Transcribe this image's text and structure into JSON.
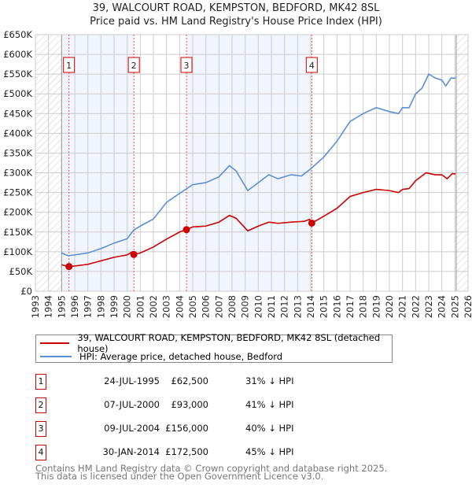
{
  "title_line1": "39, WALCOURT ROAD, KEMPSTON, BEDFORD, MK42 8SL",
  "title_line2": "Price paid vs. HM Land Registry's House Price Index (HPI)",
  "chart_data": {
    "type": "line",
    "title": "39, WALCOURT ROAD, KEMPSTON, BEDFORD, MK42 8SL — Price paid vs. HM Land Registry's House Price Index (HPI)",
    "xlim": [
      1993,
      2026
    ],
    "ylim": [
      0,
      650000
    ],
    "x_ticks": [
      "1993",
      "1994",
      "1995",
      "1996",
      "1997",
      "1998",
      "1999",
      "2000",
      "2001",
      "2002",
      "2003",
      "2004",
      "2005",
      "2006",
      "2007",
      "2008",
      "2009",
      "2010",
      "2011",
      "2012",
      "2013",
      "2014",
      "2015",
      "2016",
      "2017",
      "2018",
      "2019",
      "2020",
      "2021",
      "2022",
      "2023",
      "2024",
      "2025",
      "2026"
    ],
    "y_ticks": [
      {
        "v": 0,
        "label": "£0"
      },
      {
        "v": 50000,
        "label": "£50K"
      },
      {
        "v": 100000,
        "label": "£100K"
      },
      {
        "v": 150000,
        "label": "£150K"
      },
      {
        "v": 200000,
        "label": "£200K"
      },
      {
        "v": 250000,
        "label": "£250K"
      },
      {
        "v": 300000,
        "label": "£300K"
      },
      {
        "v": 350000,
        "label": "£350K"
      },
      {
        "v": 400000,
        "label": "£400K"
      },
      {
        "v": 450000,
        "label": "£450K"
      },
      {
        "v": 500000,
        "label": "£500K"
      },
      {
        "v": 550000,
        "label": "£550K"
      },
      {
        "v": 600000,
        "label": "£600K"
      },
      {
        "v": 650000,
        "label": "£650K"
      }
    ],
    "grid": true,
    "hatched_ranges": [
      [
        1993,
        1995
      ],
      [
        2025.1,
        2026
      ]
    ],
    "shaded_ranges": [
      [
        1995,
        2000.51
      ],
      [
        2004.52,
        2014.08
      ]
    ],
    "series": [
      {
        "name": "39, WALCOURT ROAD, KEMPSTON, BEDFORD, MK42 8SL (detached house)",
        "color": "#cc0000",
        "points": [
          [
            1995,
            67000
          ],
          [
            1995.56,
            62500
          ],
          [
            1996,
            64000
          ],
          [
            1997,
            68000
          ],
          [
            1998,
            77000
          ],
          [
            1999,
            86000
          ],
          [
            2000,
            92000
          ],
          [
            2000.4,
            100000
          ],
          [
            2000.51,
            93000
          ],
          [
            2001,
            97000
          ],
          [
            2002,
            112000
          ],
          [
            2003,
            132000
          ],
          [
            2004,
            150000
          ],
          [
            2004.52,
            156000
          ],
          [
            2005,
            163000
          ],
          [
            2006,
            165000
          ],
          [
            2007,
            175000
          ],
          [
            2007.8,
            192000
          ],
          [
            2008.3,
            185000
          ],
          [
            2009.2,
            153000
          ],
          [
            2010,
            165000
          ],
          [
            2010.8,
            175000
          ],
          [
            2011.5,
            172000
          ],
          [
            2012.5,
            175000
          ],
          [
            2013.5,
            177000
          ],
          [
            2013.9,
            182000
          ],
          [
            2014.08,
            172500
          ],
          [
            2015,
            190000
          ],
          [
            2016,
            210000
          ],
          [
            2017,
            240000
          ],
          [
            2018,
            250000
          ],
          [
            2019,
            258000
          ],
          [
            2020,
            255000
          ],
          [
            2020.7,
            250000
          ],
          [
            2021,
            258000
          ],
          [
            2021.5,
            260000
          ],
          [
            2022,
            280000
          ],
          [
            2022.8,
            300000
          ],
          [
            2023.5,
            295000
          ],
          [
            2024,
            295000
          ],
          [
            2024.4,
            285000
          ],
          [
            2024.8,
            298000
          ],
          [
            2025.05,
            297000
          ]
        ]
      },
      {
        "name": "HPI: Average price, detached house, Bedford",
        "color": "#5b8fd4",
        "points": [
          [
            1995,
            97000
          ],
          [
            1995.5,
            90000
          ],
          [
            1996,
            92000
          ],
          [
            1997,
            97000
          ],
          [
            1998,
            108000
          ],
          [
            1999,
            122000
          ],
          [
            2000,
            133000
          ],
          [
            2000.5,
            155000
          ],
          [
            2001,
            165000
          ],
          [
            2002,
            183000
          ],
          [
            2003,
            225000
          ],
          [
            2004,
            248000
          ],
          [
            2005,
            270000
          ],
          [
            2006,
            275000
          ],
          [
            2007,
            290000
          ],
          [
            2007.8,
            318000
          ],
          [
            2008.3,
            305000
          ],
          [
            2009.2,
            255000
          ],
          [
            2010,
            275000
          ],
          [
            2010.8,
            295000
          ],
          [
            2011.5,
            285000
          ],
          [
            2012.5,
            295000
          ],
          [
            2013.3,
            292000
          ],
          [
            2014,
            310000
          ],
          [
            2015,
            340000
          ],
          [
            2016,
            380000
          ],
          [
            2017,
            430000
          ],
          [
            2018,
            450000
          ],
          [
            2019,
            465000
          ],
          [
            2020,
            455000
          ],
          [
            2020.7,
            450000
          ],
          [
            2021,
            465000
          ],
          [
            2021.5,
            465000
          ],
          [
            2022,
            500000
          ],
          [
            2022.5,
            515000
          ],
          [
            2023,
            550000
          ],
          [
            2023.5,
            540000
          ],
          [
            2024,
            535000
          ],
          [
            2024.3,
            520000
          ],
          [
            2024.7,
            540000
          ],
          [
            2025.05,
            540000
          ]
        ]
      }
    ],
    "sales": [
      {
        "n": "1",
        "x": 1995.56,
        "price": 62500
      },
      {
        "n": "2",
        "x": 2000.51,
        "price": 93000
      },
      {
        "n": "3",
        "x": 2004.52,
        "price": 156000
      },
      {
        "n": "4",
        "x": 2014.08,
        "price": 172500
      }
    ]
  },
  "legend": {
    "property": "39, WALCOURT ROAD, KEMPSTON, BEDFORD, MK42 8SL (detached house)",
    "hpi": "HPI: Average price, detached house, Bedford"
  },
  "transactions": [
    {
      "n": "1",
      "date": "24-JUL-1995",
      "price": "£62,500",
      "hpi": "31% ↓ HPI"
    },
    {
      "n": "2",
      "date": "07-JUL-2000",
      "price": "£93,000",
      "hpi": "41% ↓ HPI"
    },
    {
      "n": "3",
      "date": "09-JUL-2004",
      "price": "£156,000",
      "hpi": "40% ↓ HPI"
    },
    {
      "n": "4",
      "date": "30-JAN-2014",
      "price": "£172,500",
      "hpi": "45% ↓ HPI"
    }
  ],
  "footer_line1": "Contains HM Land Registry data © Crown copyright and database right 2025.",
  "footer_line2": "This data is licensed under the Open Government Licence v3.0."
}
